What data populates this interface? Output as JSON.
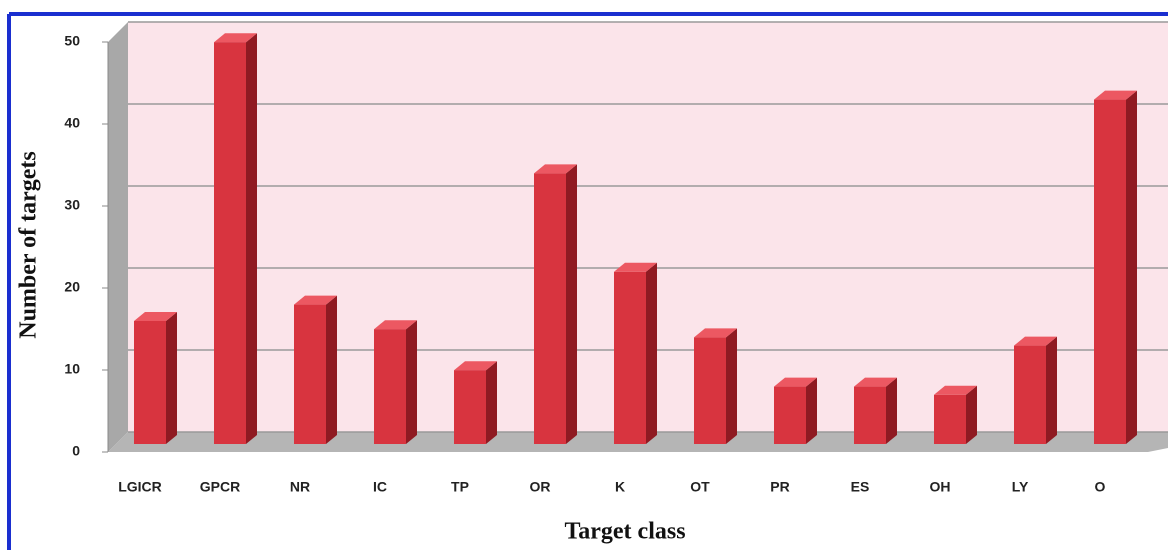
{
  "chart_data": {
    "type": "bar3d",
    "x_label": "Target class",
    "y_label": "Number of targets",
    "categories": [
      "LGICR",
      "GPCR",
      "NR",
      "IC",
      "TP",
      "OR",
      "K",
      "OT",
      "PR",
      "ES",
      "OH",
      "LY",
      "O"
    ],
    "values": [
      15,
      49,
      17,
      14,
      9,
      33,
      21,
      13,
      7,
      7,
      6,
      12,
      42
    ],
    "color": "#d8343f",
    "ylim": [
      0,
      50
    ],
    "yticks": [
      0,
      10,
      20,
      30,
      40,
      50
    ],
    "grid": true
  }
}
